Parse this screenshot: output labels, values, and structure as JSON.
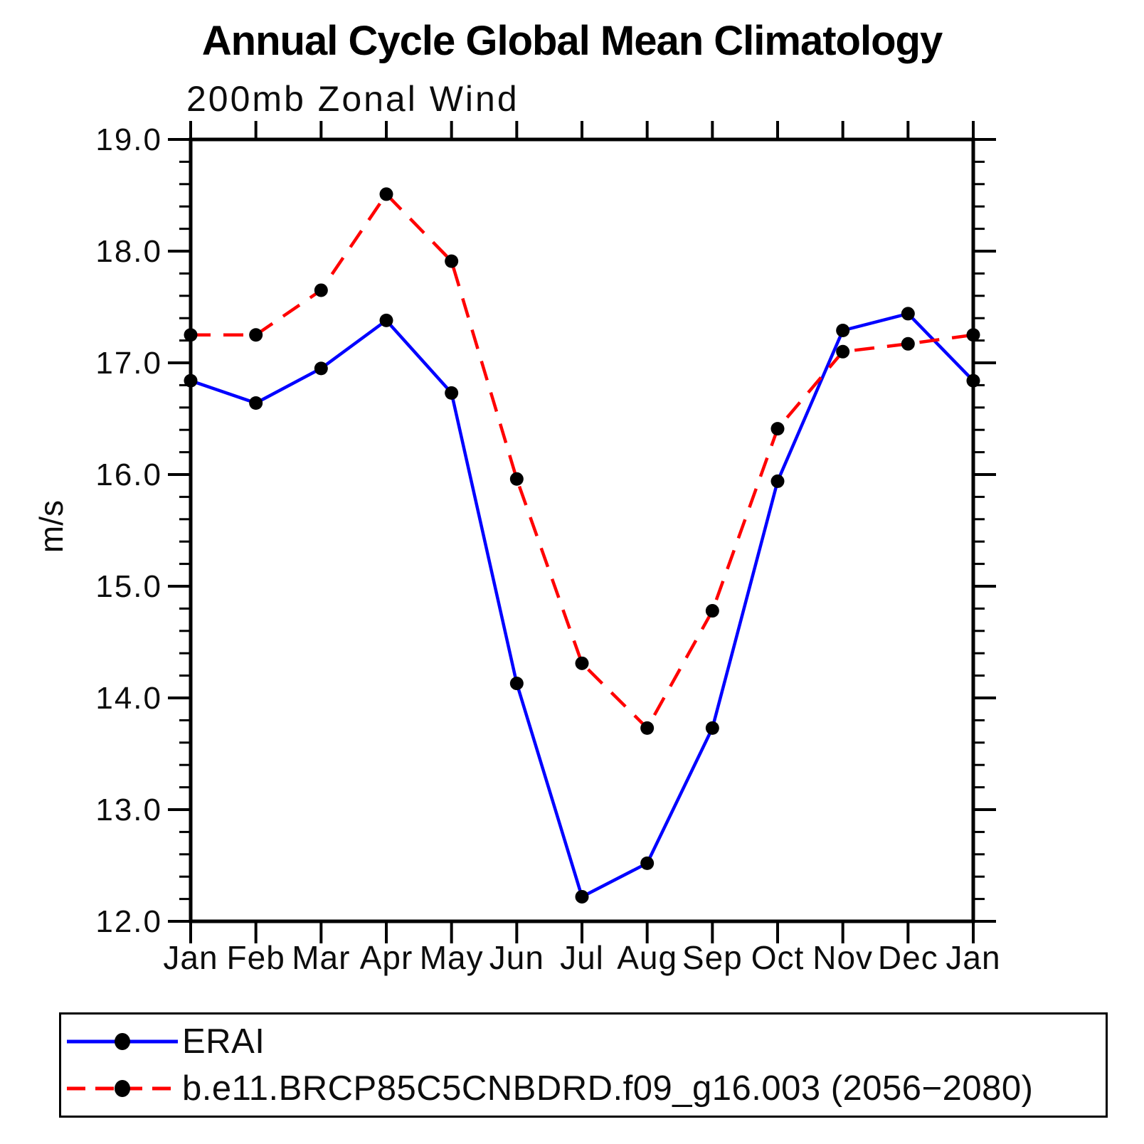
{
  "title": "Annual Cycle Global Mean Climatology",
  "subtitle": "200mb Zonal Wind",
  "ylabel": "m/s",
  "chart_data": {
    "type": "line",
    "categories": [
      "Jan",
      "Feb",
      "Mar",
      "Apr",
      "May",
      "Jun",
      "Jul",
      "Aug",
      "Sep",
      "Oct",
      "Nov",
      "Dec",
      "Jan"
    ],
    "series": [
      {
        "name": "ERAI",
        "color": "#0000ff",
        "style": "solid",
        "values": [
          16.84,
          16.64,
          16.95,
          17.38,
          16.73,
          14.13,
          12.22,
          12.52,
          13.73,
          15.94,
          17.29,
          17.44,
          16.84
        ]
      },
      {
        "name": "b.e11.BRCP85C5CNBDRD.f09_g16.003 (2056−2080)",
        "color": "#ff0000",
        "style": "dashed",
        "values": [
          17.25,
          17.25,
          17.65,
          18.51,
          17.91,
          15.96,
          14.31,
          13.73,
          14.78,
          16.41,
          17.1,
          17.17,
          17.25
        ]
      }
    ],
    "marker_color": "#000000",
    "axis_color": "#000000",
    "xlabel": "",
    "ylabel": "m/s",
    "ylim": [
      12.0,
      19.0
    ],
    "ytick_major_step": 1.0,
    "ytick_minor_step": 0.2,
    "ytick_labels": [
      "12.0",
      "13.0",
      "14.0",
      "15.0",
      "16.0",
      "17.0",
      "18.0",
      "19.0"
    ],
    "grid": false,
    "legend_position": "bottom"
  }
}
